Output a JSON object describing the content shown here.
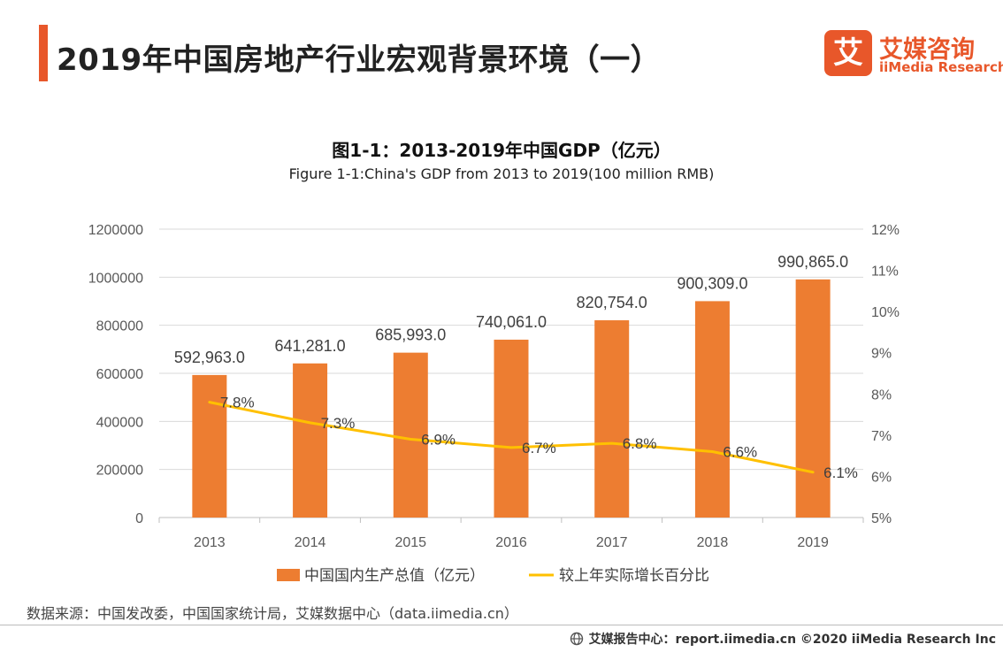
{
  "page_title": "2019年中国房地产行业宏观背景环境（一）",
  "brand": {
    "logo_char": "艾",
    "name_cn": "艾媒咨询",
    "name_en": "iiMedia Research",
    "accent": "#E8572A"
  },
  "chart_data": {
    "type": "bar+line",
    "title": "图1-1：2013-2019年中国GDP（亿元）",
    "subtitle": "Figure 1-1:China's GDP from 2013 to 2019(100 million RMB)",
    "categories": [
      "2013",
      "2014",
      "2015",
      "2016",
      "2017",
      "2018",
      "2019"
    ],
    "series": [
      {
        "name": "中国国内生产总值（亿元）",
        "type": "bar",
        "axis": "left",
        "color": "#ED7D31",
        "values": [
          592963.0,
          641281.0,
          685993.0,
          740061.0,
          820754.0,
          900309.0,
          990865.0
        ],
        "labels": [
          "592,963.0",
          "641,281.0",
          "685,993.0",
          "740,061.0",
          "820,754.0",
          "900,309.0",
          "990,865.0"
        ]
      },
      {
        "name": "较上年实际增长百分比",
        "type": "line",
        "axis": "right",
        "color": "#FFC000",
        "values": [
          7.8,
          7.3,
          6.9,
          6.7,
          6.8,
          6.6,
          6.1
        ],
        "labels": [
          "7.8%",
          "7.3%",
          "6.9%",
          "6.7%",
          "6.8%",
          "6.6%",
          "6.1%"
        ]
      }
    ],
    "y_left": {
      "ylim": [
        0,
        1200000
      ],
      "ticks": [
        0,
        200000,
        400000,
        600000,
        800000,
        1000000,
        1200000
      ],
      "tick_labels": [
        "0",
        "200000",
        "400000",
        "600000",
        "800000",
        "1000000",
        "1200000"
      ]
    },
    "y_right": {
      "ylim": [
        5,
        12
      ],
      "ticks": [
        5,
        6,
        7,
        8,
        9,
        10,
        11,
        12
      ],
      "tick_labels": [
        "5%",
        "6%",
        "7%",
        "8%",
        "9%",
        "10%",
        "11%",
        "12%"
      ]
    },
    "grid": true,
    "legend_position": "bottom"
  },
  "source_text": "数据来源：中国发改委，中国国家统计局，艾媒数据中心（data.iimedia.cn）",
  "footer_text": "艾媒报告中心：report.iimedia.cn ©2020 iiMedia Research Inc"
}
